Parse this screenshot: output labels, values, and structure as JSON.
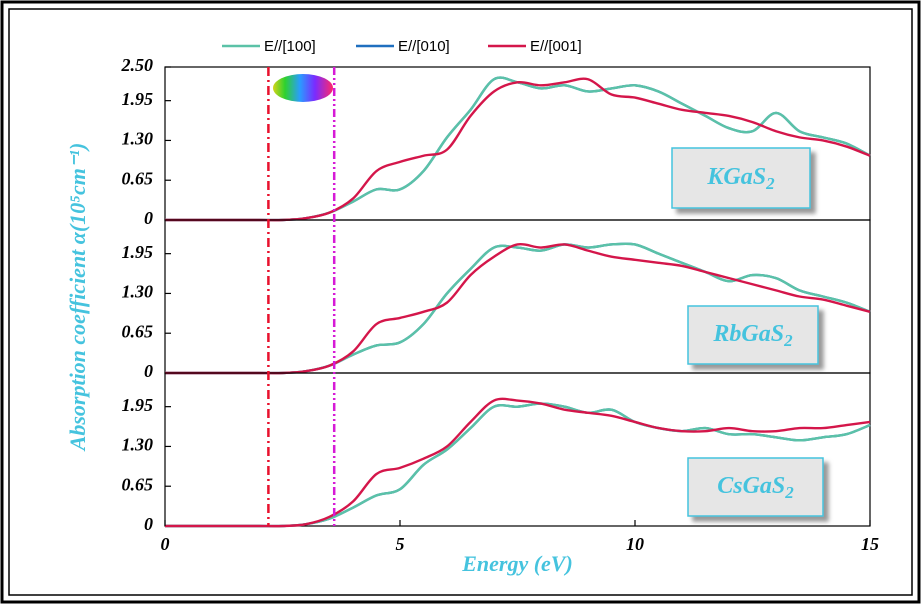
{
  "chart_data": {
    "type": "line",
    "xlabel": "Energy (eV)",
    "ylabel": "Absorption coefficient α(10⁵cm⁻¹)",
    "xlim": [
      0,
      15
    ],
    "xticks": [
      0,
      5,
      10,
      15
    ],
    "legend": [
      {
        "name": "E//[100]",
        "color": "#5bc2a7"
      },
      {
        "name": "E//[010]",
        "color": "#1f6fbf"
      },
      {
        "name": "E//[001]",
        "color": "#d4164a"
      }
    ],
    "reference_lines": [
      {
        "x": 2.2,
        "color": "#e8112d"
      },
      {
        "x": 3.6,
        "color": "#d61ad6"
      }
    ],
    "x": [
      0,
      0.5,
      1,
      1.5,
      2,
      2.5,
      3,
      3.5,
      4,
      4.5,
      5,
      5.5,
      6,
      6.5,
      7,
      7.5,
      8,
      8.5,
      9,
      9.5,
      10,
      10.5,
      11,
      11.5,
      12,
      12.5,
      13,
      13.5,
      14,
      14.5,
      15
    ],
    "panels": [
      {
        "label": "KGaS",
        "subscript": "2",
        "ylim": [
          0,
          2.5
        ],
        "yticks": [
          0,
          0.65,
          {
            "value": 1.3,
            "label": "1.30"
          },
          1.95,
          {
            "value": 2.5,
            "label": "2.50"
          }
        ],
        "series": [
          {
            "values": [
              0,
              0,
              0,
              0,
              0,
              0,
              0.03,
              0.12,
              0.3,
              0.5,
              0.5,
              0.8,
              1.35,
              1.8,
              2.3,
              2.25,
              2.15,
              2.2,
              2.1,
              2.15,
              2.2,
              2.1,
              1.9,
              1.7,
              1.5,
              1.45,
              1.75,
              1.45,
              1.35,
              1.25,
              1.05
            ]
          },
          {
            "values": [
              0,
              0,
              0,
              0,
              0,
              0,
              0.03,
              0.12,
              0.3,
              0.5,
              0.5,
              0.8,
              1.35,
              1.8,
              2.3,
              2.25,
              2.15,
              2.2,
              2.1,
              2.15,
              2.2,
              2.1,
              1.9,
              1.7,
              1.5,
              1.45,
              1.75,
              1.45,
              1.35,
              1.25,
              1.05
            ]
          },
          {
            "values": [
              0,
              0,
              0,
              0,
              0,
              0,
              0.03,
              0.12,
              0.35,
              0.8,
              0.95,
              1.05,
              1.15,
              1.7,
              2.1,
              2.25,
              2.2,
              2.25,
              2.3,
              2.05,
              2.0,
              1.9,
              1.8,
              1.75,
              1.7,
              1.6,
              1.45,
              1.35,
              1.3,
              1.2,
              1.05
            ]
          }
        ]
      },
      {
        "label": "RbGaS",
        "subscript": "2",
        "ylim": [
          0,
          2.5
        ],
        "yticks": [
          0,
          0.65,
          {
            "value": 1.3,
            "label": "1.30"
          },
          1.95
        ],
        "series": [
          {
            "values": [
              0,
              0,
              0,
              0,
              0,
              0,
              0.03,
              0.12,
              0.3,
              0.45,
              0.5,
              0.8,
              1.3,
              1.7,
              2.05,
              2.05,
              2.0,
              2.1,
              2.05,
              2.1,
              2.1,
              1.95,
              1.8,
              1.65,
              1.5,
              1.6,
              1.55,
              1.35,
              1.25,
              1.15,
              1.0
            ]
          },
          {
            "values": [
              0,
              0,
              0,
              0,
              0,
              0,
              0.03,
              0.12,
              0.3,
              0.45,
              0.5,
              0.8,
              1.3,
              1.7,
              2.05,
              2.05,
              2.0,
              2.1,
              2.05,
              2.1,
              2.1,
              1.95,
              1.8,
              1.65,
              1.5,
              1.6,
              1.55,
              1.35,
              1.25,
              1.15,
              1.0
            ]
          },
          {
            "values": [
              0,
              0,
              0,
              0,
              0,
              0,
              0.03,
              0.12,
              0.35,
              0.8,
              0.9,
              1.0,
              1.15,
              1.6,
              1.9,
              2.1,
              2.05,
              2.1,
              2.0,
              1.9,
              1.85,
              1.8,
              1.75,
              1.65,
              1.55,
              1.45,
              1.35,
              1.25,
              1.2,
              1.1,
              1.0
            ]
          }
        ]
      },
      {
        "label": "CsGaS",
        "subscript": "2",
        "ylim": [
          0,
          2.5
        ],
        "yticks": [
          0,
          0.65,
          {
            "value": 1.3,
            "label": "1.30"
          },
          1.95
        ],
        "series": [
          {
            "values": [
              0,
              0,
              0,
              0,
              0,
              0,
              0.03,
              0.12,
              0.3,
              0.5,
              0.6,
              1.0,
              1.25,
              1.6,
              1.95,
              1.95,
              2.0,
              1.95,
              1.85,
              1.9,
              1.7,
              1.6,
              1.55,
              1.6,
              1.5,
              1.5,
              1.45,
              1.4,
              1.45,
              1.5,
              1.65
            ]
          },
          {
            "values": [
              0,
              0,
              0,
              0,
              0,
              0,
              0.03,
              0.12,
              0.3,
              0.5,
              0.6,
              1.0,
              1.25,
              1.6,
              1.95,
              1.95,
              2.0,
              1.95,
              1.85,
              1.9,
              1.7,
              1.6,
              1.55,
              1.6,
              1.5,
              1.5,
              1.45,
              1.4,
              1.45,
              1.5,
              1.65
            ]
          },
          {
            "values": [
              0,
              0,
              0,
              0,
              0,
              0,
              0.03,
              0.15,
              0.4,
              0.85,
              0.95,
              1.1,
              1.3,
              1.7,
              2.05,
              2.05,
              2.0,
              1.9,
              1.85,
              1.8,
              1.7,
              1.6,
              1.55,
              1.55,
              1.6,
              1.55,
              1.55,
              1.6,
              1.6,
              1.65,
              1.7
            ]
          }
        ]
      }
    ]
  }
}
